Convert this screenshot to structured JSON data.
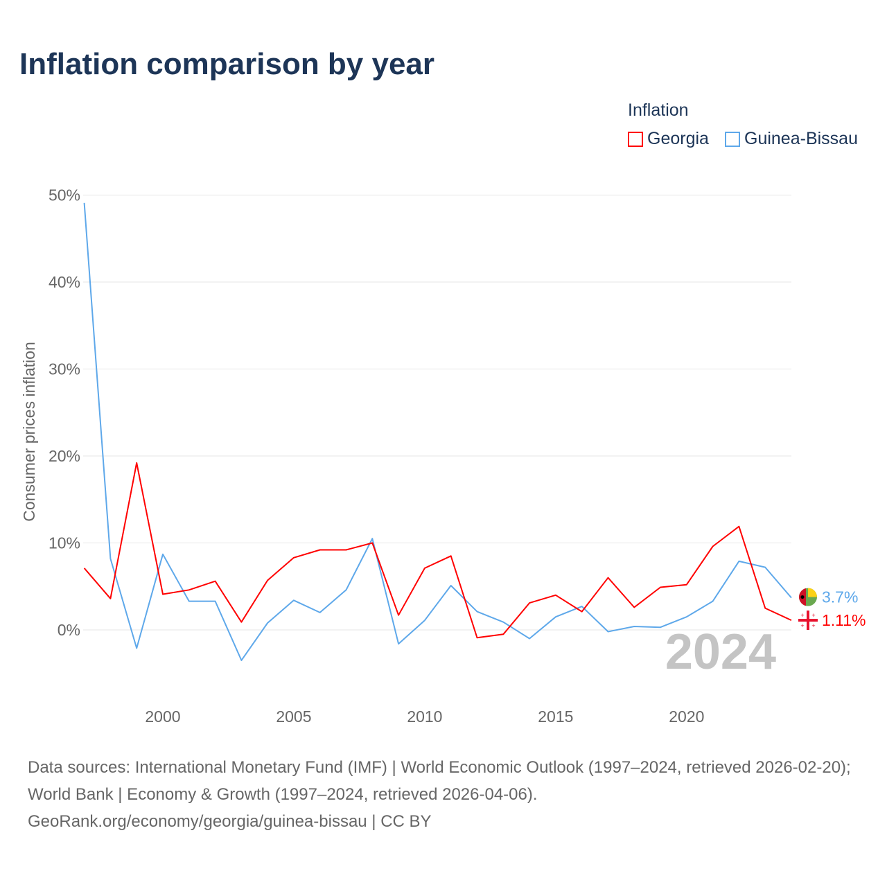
{
  "title": "Inflation comparison by year",
  "legend": {
    "title": "Inflation",
    "items": [
      {
        "label": "Georgia",
        "color": "#ff0000"
      },
      {
        "label": "Guinea-Bissau",
        "color": "#5ea8ea"
      }
    ]
  },
  "year_watermark": "2024",
  "footer": {
    "sources": "Data sources: International Monetary Fund (IMF) | World Economic Outlook (1997–2024, retrieved 2026-02-20); World Bank | Economy & Growth (1997–2024, retrieved 2026-04-06).",
    "url": "GeoRank.org/economy/georgia/guinea-bissau | CC BY"
  },
  "chart_data": {
    "type": "line",
    "title": "Inflation comparison by year",
    "xlabel": "",
    "ylabel": "Consumer prices inflation",
    "xlim": [
      1997,
      2024
    ],
    "ylim": [
      -8,
      50
    ],
    "x_ticks": [
      2000,
      2005,
      2010,
      2015,
      2020
    ],
    "y_ticks": [
      0,
      10,
      20,
      30,
      40,
      50
    ],
    "y_tick_labels": [
      "0%",
      "10%",
      "20%",
      "30%",
      "40%",
      "50%"
    ],
    "grid": true,
    "legend_position": "top-right",
    "x": [
      1997,
      1998,
      1999,
      2000,
      2001,
      2002,
      2003,
      2004,
      2005,
      2006,
      2007,
      2008,
      2009,
      2010,
      2011,
      2012,
      2013,
      2014,
      2015,
      2016,
      2017,
      2018,
      2019,
      2020,
      2021,
      2022,
      2023,
      2024
    ],
    "series": [
      {
        "name": "Georgia",
        "color": "#ff0000",
        "end_label": "1.11%",
        "values": [
          7.1,
          3.6,
          19.2,
          4.1,
          4.6,
          5.6,
          0.9,
          5.7,
          8.3,
          9.2,
          9.2,
          10.0,
          1.7,
          7.1,
          8.5,
          -0.9,
          -0.5,
          3.1,
          4.0,
          2.1,
          6.0,
          2.6,
          4.9,
          5.2,
          9.6,
          11.9,
          2.5,
          1.11
        ]
      },
      {
        "name": "Guinea-Bissau",
        "color": "#5ea8ea",
        "end_label": "3.7%",
        "values": [
          49.1,
          8.2,
          -2.1,
          8.7,
          3.3,
          3.3,
          -3.5,
          0.8,
          3.4,
          2.0,
          4.6,
          10.5,
          -1.6,
          1.1,
          5.1,
          2.1,
          0.9,
          -1.0,
          1.5,
          2.7,
          -0.2,
          0.4,
          0.3,
          1.5,
          3.3,
          7.9,
          7.2,
          3.7
        ]
      }
    ]
  }
}
